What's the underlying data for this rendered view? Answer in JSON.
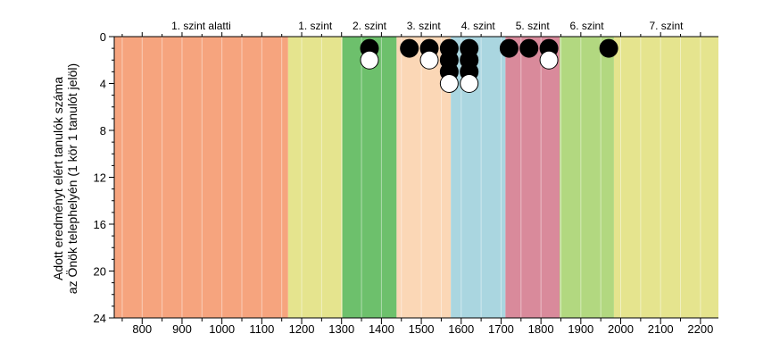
{
  "chart_data": {
    "type": "scatter",
    "title": "",
    "xlabel": "",
    "ylabel_line1": "Adott eredményt elért tanulók száma",
    "ylabel_line2": "az Önök telephelyén (1 kör 1 tanulót jelöl)",
    "xlim": [
      730,
      2245
    ],
    "ylim": [
      0,
      24
    ],
    "y_inverted": true,
    "x_ticks": [
      800,
      900,
      1000,
      1100,
      1200,
      1300,
      1400,
      1500,
      1600,
      1700,
      1800,
      1900,
      2000,
      2100,
      2200
    ],
    "y_ticks": [
      0,
      4,
      8,
      12,
      16,
      20,
      24
    ],
    "bands": [
      {
        "label": "1. szint alatti",
        "from": 730,
        "to": 1166,
        "color": "#f6a47e"
      },
      {
        "label": "1. szint",
        "from": 1166,
        "to": 1302,
        "color": "#e5e48e"
      },
      {
        "label": "2. szint",
        "from": 1302,
        "to": 1438,
        "color": "#6dc06c"
      },
      {
        "label": "3. szint",
        "from": 1438,
        "to": 1574,
        "color": "#fbd7b6"
      },
      {
        "label": "4. szint",
        "from": 1574,
        "to": 1711,
        "color": "#aad6e0"
      },
      {
        "label": "5. szint",
        "from": 1711,
        "to": 1847,
        "color": "#d98a9b"
      },
      {
        "label": "6. szint",
        "from": 1847,
        "to": 1983,
        "color": "#b2d880"
      },
      {
        "label": "7. szint",
        "from": 1983,
        "to": 2245,
        "color": "#e5e48e"
      }
    ],
    "series": [
      {
        "name": "black",
        "color": "#000000",
        "points": [
          {
            "x": 1370,
            "y": 1
          },
          {
            "x": 1470,
            "y": 1
          },
          {
            "x": 1520,
            "y": 1
          },
          {
            "x": 1570,
            "y": 1
          },
          {
            "x": 1570,
            "y": 2
          },
          {
            "x": 1570,
            "y": 3
          },
          {
            "x": 1620,
            "y": 1
          },
          {
            "x": 1620,
            "y": 2
          },
          {
            "x": 1620,
            "y": 3
          },
          {
            "x": 1720,
            "y": 1
          },
          {
            "x": 1770,
            "y": 1
          },
          {
            "x": 1820,
            "y": 1
          },
          {
            "x": 1970,
            "y": 1
          }
        ]
      },
      {
        "name": "white",
        "color": "#ffffff",
        "points": [
          {
            "x": 1370,
            "y": 2
          },
          {
            "x": 1520,
            "y": 2
          },
          {
            "x": 1570,
            "y": 4
          },
          {
            "x": 1620,
            "y": 4
          },
          {
            "x": 1820,
            "y": 2
          }
        ]
      }
    ]
  }
}
